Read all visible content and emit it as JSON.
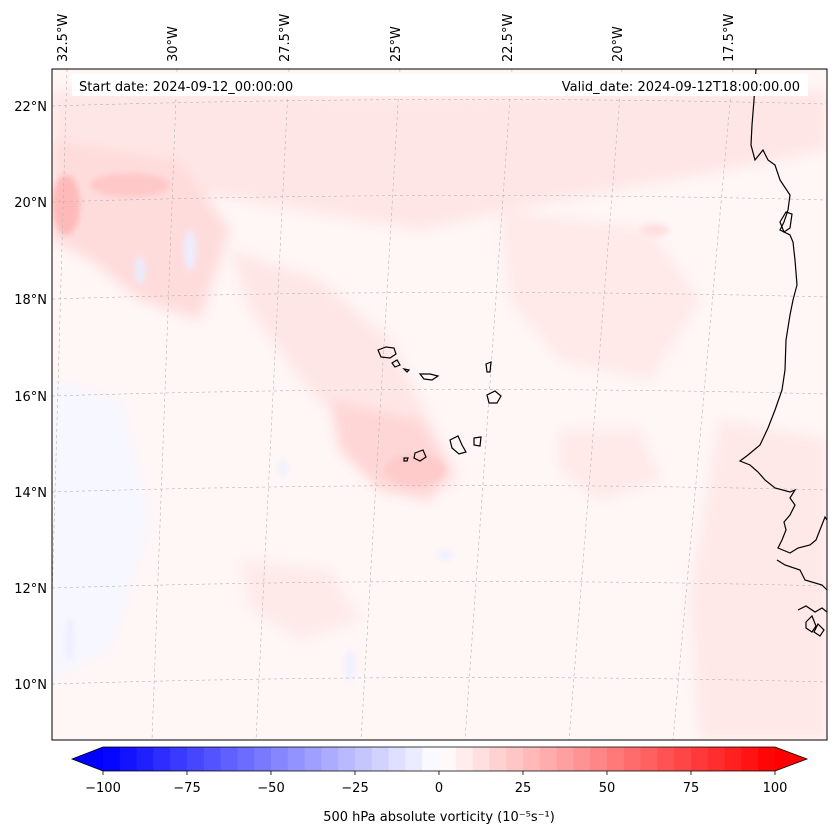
{
  "map": {
    "start_label": "Start date: 2024-09-12_00:00:00",
    "valid_label": "Valid_date: 2024-09-12T18:00:00.00",
    "lon_labels": [
      "32.5°W",
      "30°W",
      "27.5°W",
      "25°W",
      "22.5°W",
      "20°W",
      "17.5°W"
    ],
    "lat_labels": [
      "22°N",
      "20°N",
      "18°N",
      "16°N",
      "14°N",
      "12°N",
      "10°N"
    ],
    "coastline_color": "#000000",
    "gridline_color": "#b4b4b4"
  },
  "colorbar": {
    "ticks": [
      "−100",
      "−75",
      "−50",
      "−25",
      "0",
      "25",
      "50",
      "75",
      "100"
    ],
    "tick_values": [
      -100,
      -75,
      -50,
      -25,
      0,
      25,
      50,
      75,
      100
    ],
    "vmin": -100,
    "vmax": 100,
    "label": "500 hPa absolute vorticity (10⁻⁵s⁻¹)",
    "low_color": "#0000ff",
    "mid_color": "#ffffff",
    "high_color": "#ff0000"
  }
}
